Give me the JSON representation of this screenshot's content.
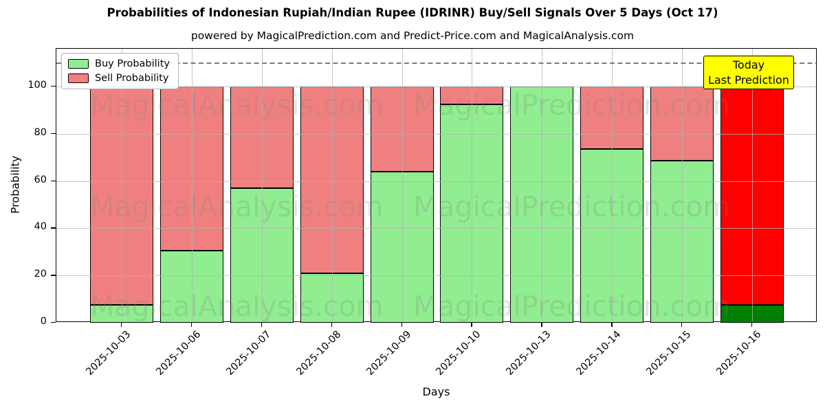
{
  "chart_data": {
    "type": "bar",
    "stacked": true,
    "title": "Probabilities of Indonesian Rupiah/Indian Rupee (IDRINR) Buy/Sell Signals Over 5 Days (Oct 17)",
    "subtitle": "powered by MagicalPrediction.com and Predict-Price.com and MagicalAnalysis.com",
    "xlabel": "Days",
    "ylabel": "Probability",
    "categories": [
      "2025-10-03",
      "2025-10-06",
      "2025-10-07",
      "2025-10-08",
      "2025-10-09",
      "2025-10-10",
      "2025-10-13",
      "2025-10-14",
      "2025-10-15",
      "2025-10-16"
    ],
    "series": [
      {
        "name": "Buy Probability",
        "color": "#90ee90",
        "today_color": "#008000",
        "values": [
          7.5,
          30.5,
          57,
          21,
          64,
          92.5,
          100,
          73.5,
          68.5,
          7.5
        ]
      },
      {
        "name": "Sell Probability",
        "color": "#f08080",
        "today_color": "#ff0000",
        "values": [
          92.5,
          69.5,
          43,
          79,
          36,
          7.5,
          0,
          26.5,
          31.5,
          92.5
        ]
      }
    ],
    "today_index": 9,
    "yticks": [
      0,
      20,
      40,
      60,
      80,
      100
    ],
    "ylim": [
      0,
      116
    ],
    "threshold_line_y": 110,
    "grid": true,
    "legend_position": "upper left",
    "bar_edge_color": "#000000",
    "annotation": {
      "line1": "Today",
      "line2": "Last Prediction",
      "bg_color": "#ffff00"
    },
    "watermarks": [
      "MagicalAnalysis.com",
      "MagicalPrediction.com"
    ]
  }
}
